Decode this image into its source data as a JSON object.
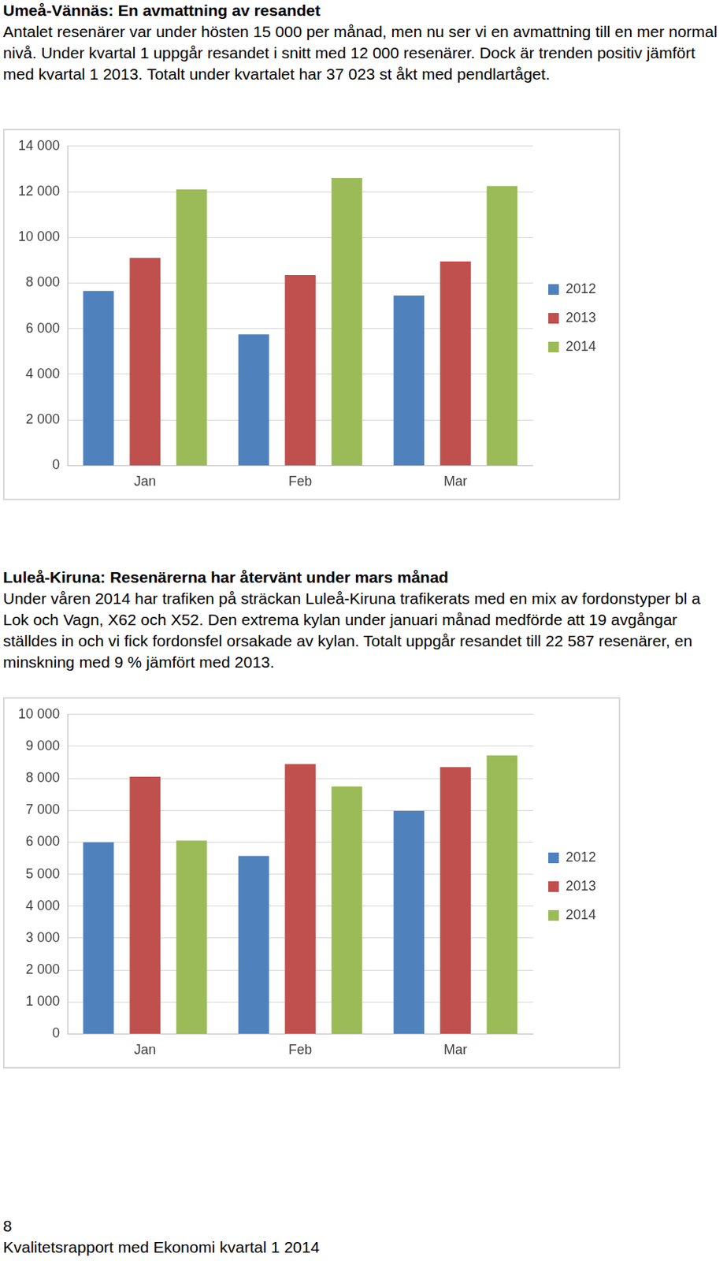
{
  "sections": [
    {
      "heading": "Umeå-Vännäs: En avmattning av resandet",
      "text": "Antalet resenärer var under hösten 15 000 per månad, men nu ser vi en avmattning till en mer normal nivå. Under kvartal 1 uppgår resandet i snitt med 12 000 resenärer. Dock är trenden positiv jämfört med kvartal 1 2013. Totalt under kvartalet har 37 023 st åkt med pendlartåget."
    },
    {
      "heading": "Luleå-Kiruna: Resenärerna har återvänt under mars månad",
      "text": "Under våren 2014 har trafiken på sträckan Luleå-Kiruna trafikerats med en mix av fordonstyper bl a Lok och Vagn, X62 och X52. Den extrema kylan under januari månad medförde att 19 avgångar ställdes in och vi fick fordonsfel orsakade av kylan. Totalt uppgår resandet till 22 587 resenärer, en minskning med 9 % jämfört med 2013."
    }
  ],
  "chart_data": [
    {
      "type": "bar",
      "categories": [
        "Jan",
        "Feb",
        "Mar"
      ],
      "series": [
        {
          "name": "2012",
          "color": "#4f81bd",
          "values": [
            7650,
            5750,
            7450
          ]
        },
        {
          "name": "2013",
          "color": "#c0504d",
          "values": [
            9100,
            8350,
            8950
          ]
        },
        {
          "name": "2014",
          "color": "#9bbb59",
          "values": [
            12100,
            12600,
            12250
          ]
        }
      ],
      "ylim": [
        0,
        14000
      ],
      "yticks": [
        0,
        {
          "value": 2000,
          "label": "2 000"
        },
        {
          "value": 4000,
          "label": "4 000"
        },
        {
          "value": 6000,
          "label": "6 000"
        },
        {
          "value": 8000,
          "label": "8 000"
        },
        {
          "value": 10000,
          "label": "10 000"
        },
        {
          "value": 12000,
          "label": "12 000"
        },
        {
          "value": 14000,
          "label": "14 000"
        }
      ],
      "grid": true,
      "legend": "right"
    },
    {
      "type": "bar",
      "categories": [
        "Jan",
        "Feb",
        "Mar"
      ],
      "series": [
        {
          "name": "2012",
          "color": "#4f81bd",
          "values": [
            6000,
            5570,
            6980
          ]
        },
        {
          "name": "2013",
          "color": "#c0504d",
          "values": [
            8050,
            8450,
            8350
          ]
        },
        {
          "name": "2014",
          "color": "#9bbb59",
          "values": [
            6050,
            7750,
            8720
          ]
        }
      ],
      "ylim": [
        0,
        10000
      ],
      "yticks": [
        0,
        {
          "value": 1000,
          "label": "1 000"
        },
        {
          "value": 2000,
          "label": "2 000"
        },
        {
          "value": 3000,
          "label": "3 000"
        },
        {
          "value": 4000,
          "label": "4 000"
        },
        {
          "value": 5000,
          "label": "5 000"
        },
        {
          "value": 6000,
          "label": "6 000"
        },
        {
          "value": 7000,
          "label": "7 000"
        },
        {
          "value": 8000,
          "label": "8 000"
        },
        {
          "value": 9000,
          "label": "9 000"
        },
        {
          "value": 10000,
          "label": "10 000"
        }
      ],
      "grid": true,
      "legend": "right"
    }
  ],
  "footer": {
    "page_number": "8",
    "text": "Kvalitetsrapport med Ekonomi kvartal 1 2014"
  }
}
